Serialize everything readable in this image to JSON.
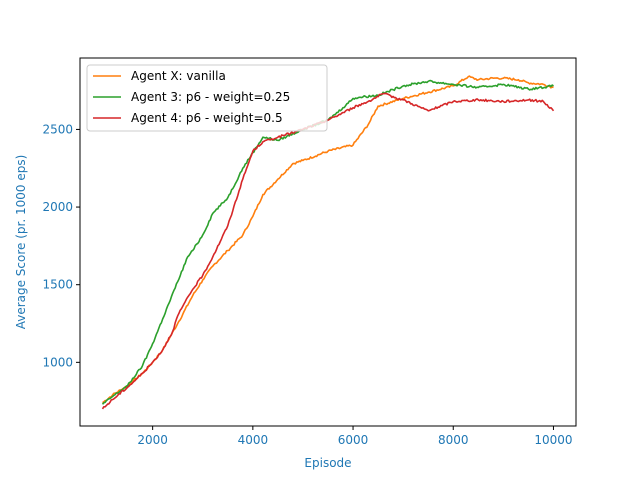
{
  "chart_data": {
    "type": "line",
    "title": "",
    "xlabel": "Episode",
    "ylabel": "Average Score (pr. 1000 eps)",
    "xlim": [
      550,
      10450
    ],
    "ylim": [
      590,
      2960
    ],
    "x_ticks": [
      2000,
      4000,
      6000,
      8000,
      10000
    ],
    "y_ticks": [
      1000,
      1500,
      2000,
      2500
    ],
    "axis_label_color": "#1f77b4",
    "grid": false,
    "legend_position": "upper-left",
    "series": [
      {
        "name": "Agent X: vanilla",
        "color": "#ff7f0e",
        "x": [
          1000,
          1200,
          1500,
          1800,
          2000,
          2200,
          2500,
          2800,
          3000,
          3200,
          3500,
          3800,
          4000,
          4200,
          4500,
          4800,
          5000,
          5500,
          6000,
          6300,
          6500,
          7000,
          7500,
          8000,
          8300,
          8500,
          8800,
          9000,
          9300,
          9500,
          9800,
          10000
        ],
        "y": [
          740,
          790,
          850,
          930,
          1000,
          1080,
          1250,
          1430,
          1530,
          1620,
          1720,
          1820,
          1940,
          2080,
          2180,
          2280,
          2300,
          2360,
          2400,
          2530,
          2650,
          2700,
          2740,
          2780,
          2840,
          2820,
          2830,
          2830,
          2820,
          2800,
          2790,
          2770
        ]
      },
      {
        "name": "Agent 3: p6 - weight=0.25",
        "color": "#2ca02c",
        "x": [
          1000,
          1200,
          1500,
          1800,
          2000,
          2200,
          2500,
          2700,
          2800,
          3000,
          3200,
          3500,
          3800,
          4000,
          4200,
          4500,
          5000,
          5500,
          5800,
          6000,
          6200,
          6500,
          7000,
          7500,
          8000,
          8500,
          9000,
          9500,
          10000
        ],
        "y": [
          730,
          780,
          850,
          980,
          1120,
          1280,
          1520,
          1680,
          1720,
          1820,
          1960,
          2060,
          2250,
          2350,
          2450,
          2430,
          2500,
          2560,
          2640,
          2700,
          2710,
          2720,
          2780,
          2810,
          2790,
          2770,
          2790,
          2760,
          2780
        ]
      },
      {
        "name": "Agent 4: p6 - weight=0.5",
        "color": "#d62728",
        "x": [
          1000,
          1200,
          1500,
          1800,
          2000,
          2200,
          2400,
          2500,
          2600,
          2800,
          3000,
          3200,
          3500,
          3800,
          4000,
          4200,
          4500,
          5000,
          5500,
          6000,
          6300,
          6600,
          7000,
          7500,
          8000,
          8500,
          9000,
          9500,
          9800,
          10000
        ],
        "y": [
          700,
          760,
          840,
          930,
          1000,
          1080,
          1200,
          1300,
          1360,
          1470,
          1560,
          1680,
          1880,
          2180,
          2360,
          2420,
          2450,
          2500,
          2560,
          2640,
          2680,
          2730,
          2690,
          2620,
          2680,
          2690,
          2680,
          2690,
          2680,
          2620
        ]
      }
    ]
  }
}
